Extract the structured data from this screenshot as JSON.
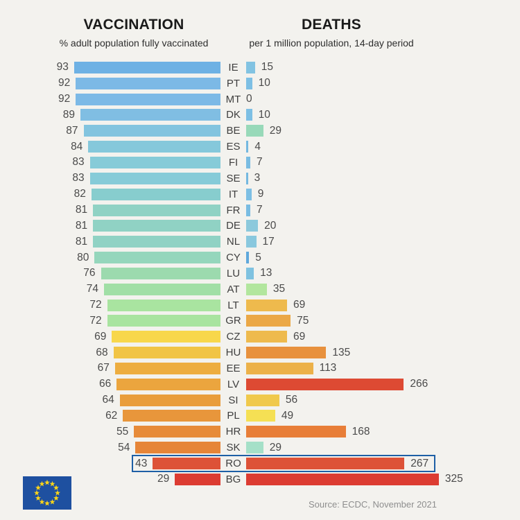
{
  "header": {
    "left_title": "VACCINATION",
    "left_subtitle": "% adult population fully vaccinated",
    "right_title": "DEATHS",
    "right_subtitle": "per 1 million population, 14-day period"
  },
  "chart_data": {
    "type": "bar",
    "orientation": "horizontal-back-to-back",
    "left_metric": {
      "label": "VACCINATION",
      "description": "% adult population fully vaccinated",
      "unit": "%"
    },
    "right_metric": {
      "label": "DEATHS",
      "description": "per 1 million population, 14-day period",
      "unit": "deaths per 1 million, 14-day period"
    },
    "categories": [
      "IE",
      "PT",
      "MT",
      "DK",
      "BE",
      "ES",
      "FI",
      "SE",
      "IT",
      "FR",
      "DE",
      "NL",
      "CY",
      "LU",
      "AT",
      "LT",
      "GR",
      "CZ",
      "HU",
      "EE",
      "LV",
      "SI",
      "PL",
      "HR",
      "SK",
      "RO",
      "BG"
    ],
    "rows": [
      {
        "code": "IE",
        "vaccination": 93,
        "deaths": 15,
        "vax_color": "#6eb1e4",
        "death_color": "#82c3e2"
      },
      {
        "code": "PT",
        "vaccination": 92,
        "deaths": 10,
        "vax_color": "#7cb9e6",
        "death_color": "#7dbfe4"
      },
      {
        "code": "MT",
        "vaccination": 92,
        "deaths": 0,
        "vax_color": "#7cb9e6",
        "death_color": ""
      },
      {
        "code": "DK",
        "vaccination": 89,
        "deaths": 10,
        "vax_color": "#80bee3",
        "death_color": "#7dbfe4"
      },
      {
        "code": "BE",
        "vaccination": 87,
        "deaths": 29,
        "vax_color": "#83c4df",
        "death_color": "#98d9b9"
      },
      {
        "code": "ES",
        "vaccination": 84,
        "deaths": 4,
        "vax_color": "#85c8db",
        "death_color": "#74b8e0"
      },
      {
        "code": "FI",
        "vaccination": 83,
        "deaths": 7,
        "vax_color": "#86cbd8",
        "death_color": "#79bce2"
      },
      {
        "code": "SE",
        "vaccination": 83,
        "deaths": 3,
        "vax_color": "#86cbd8",
        "death_color": "#74b8e0"
      },
      {
        "code": "IT",
        "vaccination": 82,
        "deaths": 9,
        "vax_color": "#87cdce",
        "death_color": "#7dbfe4"
      },
      {
        "code": "FR",
        "vaccination": 81,
        "deaths": 7,
        "vax_color": "#90d2c4",
        "death_color": "#79bce2"
      },
      {
        "code": "DE",
        "vaccination": 81,
        "deaths": 20,
        "vax_color": "#90d2c4",
        "death_color": "#8cc9dc"
      },
      {
        "code": "NL",
        "vaccination": 81,
        "deaths": 17,
        "vax_color": "#90d2c4",
        "death_color": "#89c8de"
      },
      {
        "code": "CY",
        "vaccination": 80,
        "deaths": 5,
        "vax_color": "#95d6bc",
        "death_color": "#5fa8dc"
      },
      {
        "code": "LU",
        "vaccination": 76,
        "deaths": 13,
        "vax_color": "#9cdaae",
        "death_color": "#7fc2e0"
      },
      {
        "code": "AT",
        "vaccination": 74,
        "deaths": 35,
        "vax_color": "#a1dfa6",
        "death_color": "#b2e69e"
      },
      {
        "code": "LT",
        "vaccination": 72,
        "deaths": 69,
        "vax_color": "#a9e4a0",
        "death_color": "#eeba4d"
      },
      {
        "code": "GR",
        "vaccination": 72,
        "deaths": 75,
        "vax_color": "#a9e4a0",
        "death_color": "#eba846"
      },
      {
        "code": "CZ",
        "vaccination": 69,
        "deaths": 69,
        "vax_color": "#f8d74b",
        "death_color": "#eeba4d"
      },
      {
        "code": "HU",
        "vaccination": 68,
        "deaths": 135,
        "vax_color": "#f1c445",
        "death_color": "#e8913d"
      },
      {
        "code": "EE",
        "vaccination": 67,
        "deaths": 113,
        "vax_color": "#edad40",
        "death_color": "#ecb149"
      },
      {
        "code": "LV",
        "vaccination": 66,
        "deaths": 266,
        "vax_color": "#eba53e",
        "death_color": "#dd4a33"
      },
      {
        "code": "SI",
        "vaccination": 64,
        "deaths": 56,
        "vax_color": "#e99d3c",
        "death_color": "#f0c94c"
      },
      {
        "code": "PL",
        "vaccination": 62,
        "deaths": 49,
        "vax_color": "#e8963b",
        "death_color": "#f5e054"
      },
      {
        "code": "HR",
        "vaccination": 55,
        "deaths": 168,
        "vax_color": "#e78b39",
        "death_color": "#e87e38"
      },
      {
        "code": "SK",
        "vaccination": 54,
        "deaths": 29,
        "vax_color": "#e68538",
        "death_color": "#a5e0c8"
      },
      {
        "code": "RO",
        "vaccination": 43,
        "deaths": 267,
        "vax_color": "#dd5237",
        "death_color": "#dd5237"
      },
      {
        "code": "BG",
        "vaccination": 29,
        "deaths": 325,
        "vax_color": "#dc3c32",
        "death_color": "#dc3c32"
      }
    ],
    "highlighted_code": "RO",
    "highlight_border_color": "#1d5fa5",
    "left_axis_range": [
      0,
      100
    ],
    "right_axis_range": [
      0,
      325
    ],
    "grid": false,
    "legend": false
  },
  "footer": {
    "source": "Source: ECDC, November 2021"
  },
  "eu_flag": {
    "background_color": "#1e50a0",
    "star_color": "#ffd617",
    "star_count": 12
  }
}
